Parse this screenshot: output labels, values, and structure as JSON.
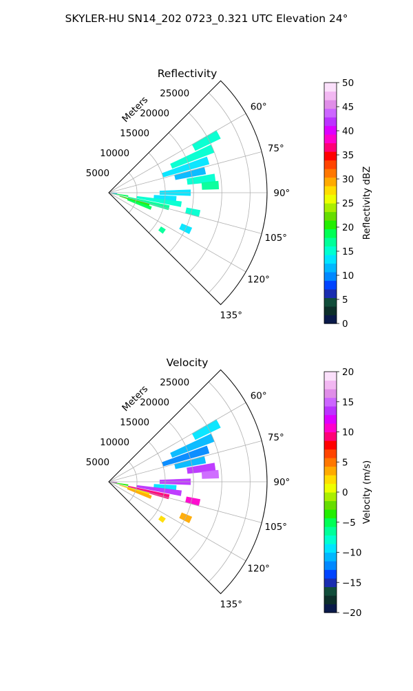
{
  "page": {
    "suptitle": "SKYLER-HU  SN14_202  0723_0.321 UTC Elevation 24°"
  },
  "chart_data": [
    {
      "type": "polar-sector",
      "title": "Reflectivity",
      "range_label": "Meters",
      "theta_range_deg": [
        45,
        135
      ],
      "r_max": 28000,
      "r_ticks": [
        5000,
        10000,
        15000,
        20000,
        25000
      ],
      "r_tick_labels": [
        "5000",
        "10000",
        "15000",
        "20000",
        "25000"
      ],
      "theta_ticks": [
        60,
        75,
        90,
        105,
        120,
        135
      ],
      "theta_tick_labels": [
        "60°",
        "75°",
        "90°",
        "105°",
        "120°",
        "135°"
      ],
      "grid": true,
      "colorbar": {
        "label": "Reflectivity dBZ",
        "min": 0,
        "max": 50,
        "ticks": [
          0,
          5,
          10,
          15,
          20,
          25,
          30,
          35,
          40,
          45,
          50
        ],
        "tick_labels": [
          "0",
          "5",
          "10",
          "15",
          "20",
          "25",
          "30",
          "35",
          "40",
          "45",
          "50"
        ],
        "colors": [
          "#0a1a4a",
          "#0d2f2a",
          "#114d3a",
          "#1a2db0",
          "#0044ff",
          "#0088ff",
          "#00b8ff",
          "#00e5ff",
          "#00ffd0",
          "#00ff99",
          "#00ff55",
          "#22ee00",
          "#66dd00",
          "#aaee00",
          "#eeff00",
          "#ffdd00",
          "#ffaa00",
          "#ff7700",
          "#ff4400",
          "#ff0000",
          "#ff0077",
          "#ff00cc",
          "#dd00ff",
          "#bb33ff",
          "#cc66ff",
          "#e08ee8",
          "#f2b8f2",
          "#fbe0fb"
        ]
      },
      "echoes": [
        {
          "theta": 62,
          "r": [
            17000,
            22000
          ],
          "value": 16
        },
        {
          "theta": 67,
          "r": [
            12000,
            20000
          ],
          "value": 15
        },
        {
          "theta": 72,
          "r": [
            10000,
            18500
          ],
          "value": 14
        },
        {
          "theta": 77,
          "r": [
            12000,
            17500
          ],
          "value": 12
        },
        {
          "theta": 82,
          "r": [
            14000,
            19000
          ],
          "value": 16
        },
        {
          "theta": 86,
          "r": [
            16500,
            19500
          ],
          "value": 17
        },
        {
          "theta": 90,
          "r": [
            9000,
            14500
          ],
          "value": 14
        },
        {
          "theta": 95,
          "r": [
            8000,
            12000
          ],
          "value": 13
        },
        {
          "theta": 99,
          "r": [
            5000,
            13000
          ],
          "value": 15
        },
        {
          "theta": 104,
          "r": [
            3500,
            11000
          ],
          "value": 17
        },
        {
          "theta": 103,
          "r": [
            14000,
            16500
          ],
          "value": 16
        },
        {
          "theta": 107,
          "r": [
            2000,
            7500
          ],
          "value": 21
        },
        {
          "theta": 110,
          "r": [
            3500,
            8000
          ],
          "value": 19
        },
        {
          "theta": 100,
          "r": [
            500,
            3500
          ],
          "value": 18
        },
        {
          "theta": 96,
          "r": [
            300,
            1500
          ],
          "value": 9
        },
        {
          "theta": 125,
          "r": [
            11000,
            12000
          ],
          "value": 17
        },
        {
          "theta": 115,
          "r": [
            14000,
            16000
          ],
          "value": 14
        }
      ]
    },
    {
      "type": "polar-sector",
      "title": "Velocity",
      "range_label": "Meters",
      "theta_range_deg": [
        45,
        135
      ],
      "r_max": 28000,
      "r_ticks": [
        5000,
        10000,
        15000,
        20000,
        25000
      ],
      "r_tick_labels": [
        "5000",
        "10000",
        "15000",
        "20000",
        "25000"
      ],
      "theta_ticks": [
        60,
        75,
        90,
        105,
        120,
        135
      ],
      "theta_tick_labels": [
        "60°",
        "75°",
        "90°",
        "105°",
        "120°",
        "135°"
      ],
      "grid": true,
      "colorbar": {
        "label": "Velocity (m/s)",
        "min": -20,
        "max": 20,
        "ticks": [
          -20,
          -15,
          -10,
          -5,
          0,
          5,
          10,
          15,
          20
        ],
        "tick_labels": [
          "−20",
          "−15",
          "−10",
          "−5",
          "0",
          "5",
          "10",
          "15",
          "20"
        ],
        "colors": [
          "#0a1a4a",
          "#0d2f2a",
          "#114d3a",
          "#1a2db0",
          "#0044ff",
          "#0088ff",
          "#00b8ff",
          "#00e5ff",
          "#00ffd0",
          "#00ff99",
          "#00ff55",
          "#22ee00",
          "#66dd00",
          "#aaee00",
          "#eeff00",
          "#ffdd00",
          "#ffaa00",
          "#ff7700",
          "#ff4400",
          "#ff0000",
          "#ff0077",
          "#ff00cc",
          "#dd00ff",
          "#bb33ff",
          "#cc66ff",
          "#e08ee8",
          "#f2b8f2",
          "#fbe0fb"
        ]
      },
      "echoes": [
        {
          "theta": 62,
          "r": [
            17000,
            22000
          ],
          "value": -10
        },
        {
          "theta": 67,
          "r": [
            12000,
            20000
          ],
          "value": -11
        },
        {
          "theta": 72,
          "r": [
            10000,
            18500
          ],
          "value": -12
        },
        {
          "theta": 77,
          "r": [
            12000,
            17500
          ],
          "value": -11
        },
        {
          "theta": 82,
          "r": [
            14000,
            19000
          ],
          "value": 14
        },
        {
          "theta": 86,
          "r": [
            16500,
            19500
          ],
          "value": 15
        },
        {
          "theta": 90,
          "r": [
            9000,
            14500
          ],
          "value": 14
        },
        {
          "theta": 95,
          "r": [
            8000,
            12000
          ],
          "value": -9
        },
        {
          "theta": 99,
          "r": [
            5000,
            13000
          ],
          "value": 13
        },
        {
          "theta": 104,
          "r": [
            3500,
            11000
          ],
          "value": 9
        },
        {
          "theta": 103,
          "r": [
            14000,
            16500
          ],
          "value": 10
        },
        {
          "theta": 107,
          "r": [
            2000,
            7500
          ],
          "value": 2
        },
        {
          "theta": 110,
          "r": [
            3500,
            8000
          ],
          "value": 4
        },
        {
          "theta": 100,
          "r": [
            500,
            3500
          ],
          "value": -4
        },
        {
          "theta": 96,
          "r": [
            300,
            1500
          ],
          "value": 12
        },
        {
          "theta": 125,
          "r": [
            11000,
            12000
          ],
          "value": 2
        },
        {
          "theta": 115,
          "r": [
            14000,
            16000
          ],
          "value": 3
        }
      ]
    }
  ]
}
